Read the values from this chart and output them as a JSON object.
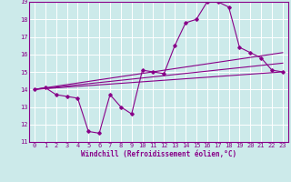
{
  "background_color": "#cceaea",
  "grid_color": "#ffffff",
  "line_color": "#880088",
  "xlim": [
    -0.5,
    23.5
  ],
  "ylim": [
    11,
    19
  ],
  "xticks": [
    0,
    1,
    2,
    3,
    4,
    5,
    6,
    7,
    8,
    9,
    10,
    11,
    12,
    13,
    14,
    15,
    16,
    17,
    18,
    19,
    20,
    21,
    22,
    23
  ],
  "yticks": [
    11,
    12,
    13,
    14,
    15,
    16,
    17,
    18,
    19
  ],
  "xlabel": "Windchill (Refroidissement éolien,°C)",
  "curve1_x": [
    0,
    1,
    2,
    3,
    4,
    5,
    6,
    7,
    8,
    9,
    10,
    11,
    12,
    13,
    14,
    15,
    16,
    17,
    18,
    19,
    20,
    21,
    22,
    23
  ],
  "curve1_y": [
    14.0,
    14.1,
    13.7,
    13.6,
    13.5,
    11.6,
    11.5,
    13.7,
    13.0,
    12.6,
    15.1,
    15.0,
    14.9,
    16.5,
    17.8,
    18.0,
    19.0,
    19.0,
    18.7,
    16.4,
    16.1,
    15.8,
    15.1,
    15.0
  ],
  "curve2_x": [
    0,
    23
  ],
  "curve2_y": [
    14.0,
    15.0
  ],
  "curve3_x": [
    0,
    23
  ],
  "curve3_y": [
    14.0,
    15.5
  ],
  "curve4_x": [
    0,
    23
  ],
  "curve4_y": [
    14.0,
    16.1
  ]
}
